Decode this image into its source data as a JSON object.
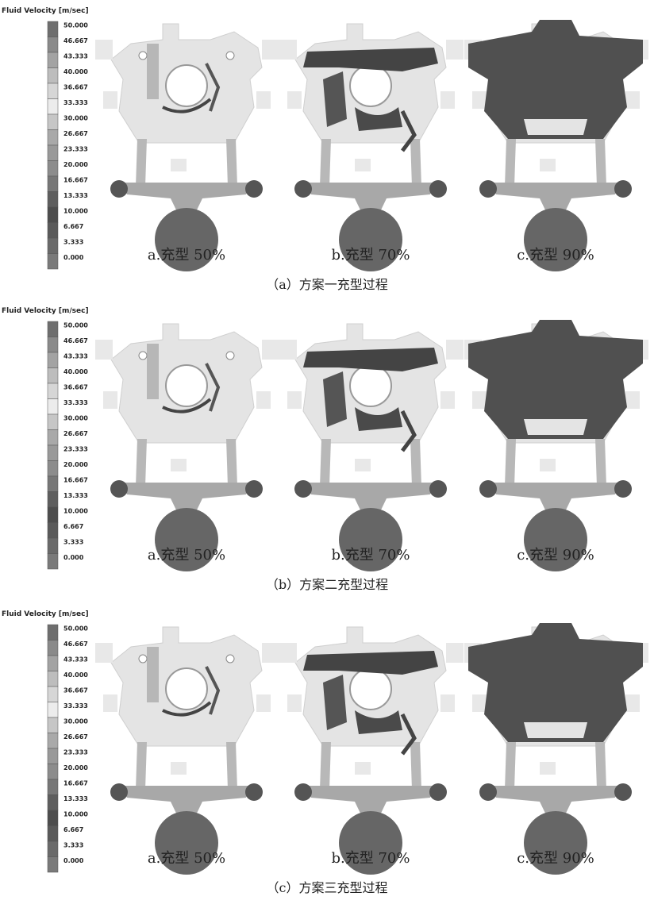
{
  "panels": [
    {
      "legend": {
        "title": "Fluid Velocity [m/sec]",
        "ticks": [
          "50.000",
          "46.667",
          "43.333",
          "40.000",
          "36.667",
          "33.333",
          "30.000",
          "26.667",
          "23.333",
          "20.000",
          "16.667",
          "13.333",
          "10.000",
          "6.667",
          "3.333",
          "0.000"
        ]
      },
      "images": [
        {
          "label": "a.充型 50%"
        },
        {
          "label": "b.充型 70%"
        },
        {
          "label": "c.充型 90%"
        }
      ],
      "caption": "（a）方案一充型过程"
    },
    {
      "legend": {
        "title": "Fluid Velocity [m/sec]",
        "ticks": [
          "50.000",
          "46.667",
          "43.333",
          "40.000",
          "36.667",
          "33.333",
          "30.000",
          "26.667",
          "23.333",
          "20.000",
          "16.667",
          "13.333",
          "10.000",
          "6.667",
          "3.333",
          "0.000"
        ]
      },
      "images": [
        {
          "label": "a.充型 50%"
        },
        {
          "label": "b.充型 70%"
        },
        {
          "label": "c.充型 90%"
        }
      ],
      "caption": "（b）方案二充型过程"
    },
    {
      "legend": {
        "title": "Fluid Velocity [m/sec]",
        "ticks": [
          "50.000",
          "46.667",
          "43.333",
          "40.000",
          "36.667",
          "33.333",
          "30.000",
          "26.667",
          "23.333",
          "20.000",
          "16.667",
          "13.333",
          "10.000",
          "6.667",
          "3.333",
          "0.000"
        ]
      },
      "images": [
        {
          "label": "a.充型 50%"
        },
        {
          "label": "b.充型 70%"
        },
        {
          "label": "c.充型 90%"
        }
      ],
      "caption": "（c）方案三充型过程"
    }
  ]
}
